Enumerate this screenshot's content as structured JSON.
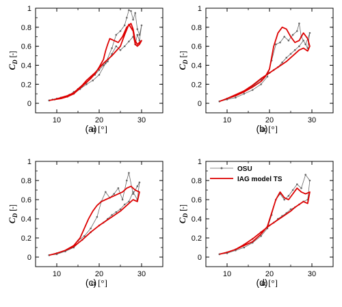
{
  "chart_data": [
    {
      "type": "line",
      "panel_label": "(a)",
      "xlabel": "α [°]",
      "ylabel_main": "C",
      "ylabel_sub": "D",
      "ylabel_unit": " [-]",
      "xlim": [
        5,
        35
      ],
      "ylim": [
        -0.1,
        1
      ],
      "xticks": [
        10,
        20,
        30
      ],
      "yticks": [
        0,
        0.2,
        0.4,
        0.6,
        0.8,
        1
      ],
      "series": [
        {
          "color": "#666666",
          "x": [
            8.2,
            9.5,
            11.0,
            12.5,
            14.0,
            15.5,
            17.0,
            18.5,
            20.0,
            21.5,
            23.0,
            24.0,
            25.0,
            26.0,
            26.5,
            27.0,
            27.5,
            28.0,
            28.5,
            29.0,
            29.5,
            30.0,
            29.5,
            29.0,
            28.5,
            28.0,
            27.0,
            26.0,
            25.0,
            24.0,
            23.0,
            22.0,
            21.0,
            20.0,
            19.0,
            18.0,
            17.0,
            16.0,
            15.0,
            14.0,
            13.0,
            12.0,
            11.0,
            10.0,
            9.0,
            8.2
          ],
          "y": [
            0.03,
            0.04,
            0.06,
            0.07,
            0.1,
            0.15,
            0.2,
            0.24,
            0.3,
            0.42,
            0.58,
            0.72,
            0.76,
            0.82,
            0.9,
            0.98,
            0.97,
            0.88,
            0.95,
            0.78,
            0.72,
            0.82,
            0.66,
            0.72,
            0.62,
            0.7,
            0.65,
            0.6,
            0.56,
            0.6,
            0.52,
            0.44,
            0.4,
            0.35,
            0.3,
            0.27,
            0.22,
            0.18,
            0.15,
            0.12,
            0.09,
            0.07,
            0.06,
            0.05,
            0.04,
            0.03
          ]
        },
        {
          "color": "#dd0000",
          "x": [
            8.2,
            9.5,
            11.0,
            12.5,
            14.0,
            15.0,
            16.0,
            17.0,
            18.0,
            19.0,
            20.0,
            21.0,
            21.5,
            22.0,
            22.5,
            23.5,
            24.5,
            25.5,
            26.5,
            27.5,
            28.0,
            28.5,
            29.0,
            29.5,
            30.0,
            29.5,
            29.0,
            28.5,
            28.0,
            27.0,
            26.0,
            25.0,
            24.0,
            23.0,
            22.0,
            21.0,
            20.0,
            19.0,
            18.0,
            17.0,
            16.0,
            15.0,
            14.0,
            12.5,
            11.0,
            9.5,
            8.2
          ],
          "y": [
            0.03,
            0.04,
            0.05,
            0.07,
            0.1,
            0.14,
            0.18,
            0.22,
            0.26,
            0.31,
            0.38,
            0.46,
            0.55,
            0.62,
            0.68,
            0.66,
            0.64,
            0.7,
            0.8,
            0.84,
            0.78,
            0.66,
            0.62,
            0.64,
            0.66,
            0.62,
            0.6,
            0.62,
            0.76,
            0.83,
            0.72,
            0.6,
            0.55,
            0.5,
            0.46,
            0.42,
            0.37,
            0.32,
            0.28,
            0.24,
            0.19,
            0.15,
            0.11,
            0.08,
            0.06,
            0.04,
            0.03
          ]
        }
      ]
    },
    {
      "type": "line",
      "panel_label": "(b)",
      "xlabel": "α [°]",
      "ylabel_main": "C",
      "ylabel_sub": "D",
      "ylabel_unit": " [-]",
      "xlim": [
        5,
        35
      ],
      "ylim": [
        -0.1,
        1
      ],
      "xticks": [
        10,
        20,
        30
      ],
      "yticks": [
        0,
        0.2,
        0.4,
        0.6,
        0.8,
        1
      ],
      "series": [
        {
          "color": "#666666",
          "x": [
            8.2,
            10.0,
            12.0,
            14.0,
            16.0,
            18.0,
            19.5,
            20.5,
            21.5,
            22.5,
            23.5,
            24.5,
            25.5,
            26.5,
            27.0,
            27.5,
            28.5,
            29.5,
            29.0,
            28.0,
            27.0,
            26.0,
            25.0,
            24.0,
            23.0,
            22.0,
            21.0,
            20.0,
            18.0,
            16.0,
            14.0,
            12.0,
            10.0,
            8.2
          ],
          "y": [
            0.02,
            0.04,
            0.06,
            0.1,
            0.14,
            0.2,
            0.28,
            0.45,
            0.62,
            0.64,
            0.7,
            0.66,
            0.72,
            0.76,
            0.84,
            0.7,
            0.62,
            0.74,
            0.58,
            0.66,
            0.6,
            0.56,
            0.52,
            0.48,
            0.43,
            0.38,
            0.35,
            0.32,
            0.25,
            0.18,
            0.12,
            0.08,
            0.05,
            0.02
          ]
        },
        {
          "color": "#dd0000",
          "x": [
            8.2,
            10.0,
            12.0,
            14.0,
            16.0,
            18.0,
            19.0,
            20.0,
            20.5,
            21.0,
            22.0,
            23.0,
            24.0,
            25.0,
            26.0,
            27.0,
            28.0,
            29.0,
            29.5,
            29.0,
            28.0,
            27.0,
            26.0,
            25.0,
            24.0,
            23.0,
            22.0,
            21.0,
            20.0,
            18.0,
            16.0,
            14.0,
            12.0,
            10.0,
            8.2
          ],
          "y": [
            0.02,
            0.05,
            0.08,
            0.12,
            0.17,
            0.23,
            0.28,
            0.36,
            0.48,
            0.6,
            0.74,
            0.8,
            0.78,
            0.7,
            0.64,
            0.66,
            0.74,
            0.68,
            0.6,
            0.55,
            0.58,
            0.56,
            0.52,
            0.48,
            0.44,
            0.41,
            0.38,
            0.35,
            0.32,
            0.26,
            0.19,
            0.13,
            0.09,
            0.05,
            0.02
          ]
        }
      ]
    },
    {
      "type": "line",
      "panel_label": "(c)",
      "xlabel": "α [°]",
      "ylabel_main": "C",
      "ylabel_sub": "D",
      "ylabel_unit": " [-]",
      "xlim": [
        5,
        35
      ],
      "ylim": [
        -0.1,
        1
      ],
      "xticks": [
        10,
        20,
        30
      ],
      "yticks": [
        0,
        0.2,
        0.4,
        0.6,
        0.8,
        1
      ],
      "series": [
        {
          "color": "#666666",
          "x": [
            8.2,
            10.0,
            12.0,
            13.5,
            15.0,
            16.5,
            18.0,
            19.5,
            20.5,
            21.5,
            22.5,
            23.5,
            24.5,
            25.5,
            26.5,
            27.0,
            28.0,
            29.0,
            29.5,
            29.0,
            28.0,
            27.0,
            26.0,
            25.0,
            24.0,
            23.0,
            22.0,
            21.0,
            20.0,
            18.0,
            16.0,
            14.0,
            12.0,
            10.0,
            8.2
          ],
          "y": [
            0.02,
            0.03,
            0.06,
            0.1,
            0.17,
            0.22,
            0.3,
            0.42,
            0.58,
            0.68,
            0.62,
            0.66,
            0.72,
            0.6,
            0.8,
            0.88,
            0.66,
            0.74,
            0.78,
            0.6,
            0.68,
            0.58,
            0.55,
            0.5,
            0.47,
            0.44,
            0.4,
            0.36,
            0.33,
            0.26,
            0.18,
            0.1,
            0.06,
            0.04,
            0.02
          ]
        },
        {
          "color": "#dd0000",
          "x": [
            8.2,
            10.0,
            12.0,
            14.0,
            15.5,
            16.5,
            17.5,
            18.5,
            19.5,
            20.5,
            21.5,
            22.5,
            23.5,
            24.5,
            25.5,
            26.5,
            27.5,
            28.5,
            29.5,
            29.0,
            28.0,
            27.0,
            26.0,
            25.0,
            24.0,
            23.0,
            22.0,
            21.0,
            20.0,
            18.0,
            16.0,
            14.0,
            12.0,
            10.0,
            8.2
          ],
          "y": [
            0.02,
            0.04,
            0.07,
            0.12,
            0.2,
            0.3,
            0.4,
            0.48,
            0.54,
            0.58,
            0.6,
            0.62,
            0.64,
            0.66,
            0.68,
            0.72,
            0.74,
            0.7,
            0.68,
            0.58,
            0.6,
            0.56,
            0.52,
            0.48,
            0.45,
            0.42,
            0.39,
            0.36,
            0.33,
            0.26,
            0.18,
            0.11,
            0.07,
            0.04,
            0.02
          ]
        }
      ]
    },
    {
      "type": "line",
      "panel_label": "(d)",
      "xlabel": "α [°]",
      "ylabel_main": "C",
      "ylabel_sub": "D",
      "ylabel_unit": " [-]",
      "xlim": [
        5,
        35
      ],
      "ylim": [
        -0.1,
        1
      ],
      "xticks": [
        10,
        20,
        30
      ],
      "yticks": [
        0,
        0.2,
        0.4,
        0.6,
        0.8,
        1
      ],
      "legend": {
        "placement": "top-left",
        "entries": [
          {
            "label": "OSU",
            "color": "#666666"
          },
          {
            "label": "IAG model TS",
            "color": "#dd0000"
          }
        ]
      },
      "series": [
        {
          "color": "#666666",
          "x": [
            8.2,
            10.0,
            12.0,
            14.0,
            16.0,
            18.0,
            19.5,
            20.5,
            21.5,
            22.5,
            23.5,
            24.5,
            25.5,
            26.5,
            27.5,
            28.5,
            29.5,
            29.0,
            28.0,
            27.0,
            26.0,
            25.0,
            24.0,
            23.0,
            22.0,
            21.0,
            20.0,
            18.0,
            16.0,
            14.0,
            12.0,
            10.0,
            8.2
          ],
          "y": [
            0.03,
            0.04,
            0.07,
            0.1,
            0.15,
            0.22,
            0.3,
            0.44,
            0.6,
            0.66,
            0.6,
            0.64,
            0.7,
            0.76,
            0.72,
            0.86,
            0.8,
            0.6,
            0.58,
            0.55,
            0.52,
            0.5,
            0.46,
            0.43,
            0.4,
            0.36,
            0.33,
            0.26,
            0.19,
            0.13,
            0.08,
            0.05,
            0.03
          ]
        },
        {
          "color": "#dd0000",
          "x": [
            8.2,
            10.0,
            12.0,
            13.0,
            14.0,
            16.0,
            18.0,
            19.5,
            20.5,
            21.5,
            22.5,
            23.5,
            24.5,
            25.5,
            26.5,
            27.5,
            28.5,
            29.5,
            29.0,
            28.0,
            27.0,
            26.0,
            25.0,
            24.0,
            23.0,
            22.0,
            21.0,
            20.0,
            18.0,
            16.0,
            14.0,
            12.0,
            10.0,
            8.2
          ],
          "y": [
            0.03,
            0.05,
            0.08,
            0.1,
            0.12,
            0.16,
            0.24,
            0.32,
            0.46,
            0.6,
            0.68,
            0.62,
            0.6,
            0.66,
            0.72,
            0.68,
            0.66,
            0.68,
            0.56,
            0.58,
            0.55,
            0.52,
            0.48,
            0.45,
            0.42,
            0.39,
            0.36,
            0.33,
            0.26,
            0.19,
            0.13,
            0.08,
            0.05,
            0.03
          ]
        }
      ]
    }
  ]
}
